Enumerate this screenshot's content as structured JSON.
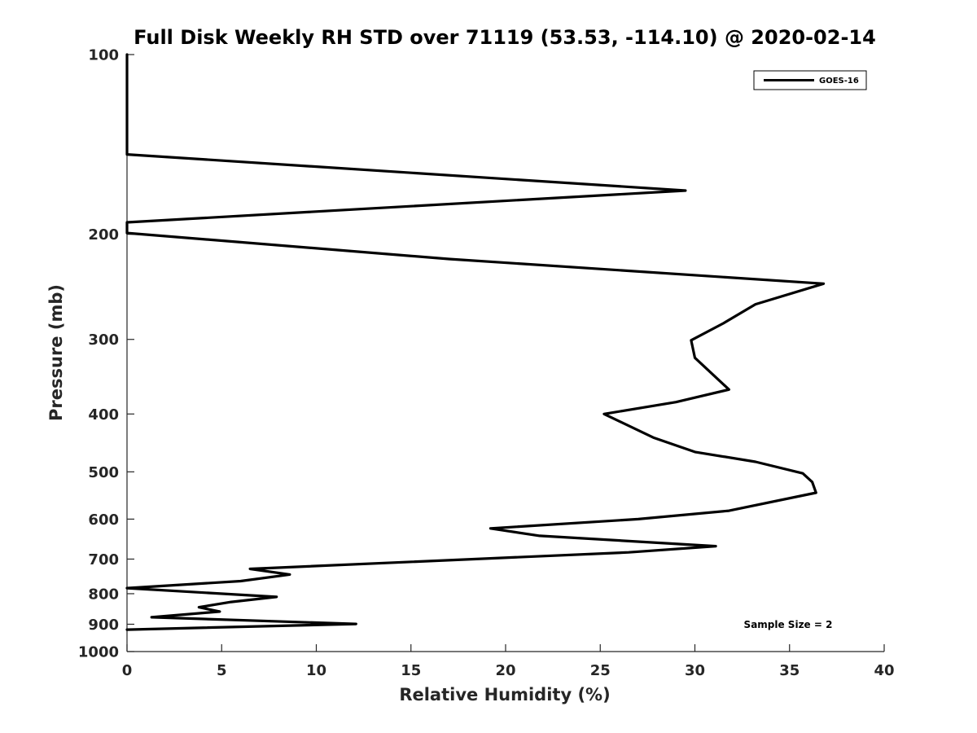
{
  "chart_data": {
    "type": "line",
    "title": "Full Disk Weekly RH STD over 71119 (53.53, -114.10) @ 2020-02-14",
    "xlabel": "Relative Humidity (%)",
    "ylabel": "Pressure (mb)",
    "xlim": [
      0,
      40
    ],
    "ylim": [
      1000,
      100
    ],
    "yscale": "log",
    "x_ticks": [
      0,
      5,
      10,
      15,
      20,
      25,
      30,
      35,
      40
    ],
    "y_ticks": [
      100,
      200,
      300,
      400,
      500,
      600,
      700,
      800,
      900,
      1000
    ],
    "grid": false,
    "legend": {
      "position": "top-right",
      "entries": [
        "GOES-16"
      ]
    },
    "annotations": [
      "Sample Size = 2"
    ],
    "series": [
      {
        "name": "GOES-16",
        "color": "#000000",
        "points": [
          {
            "rh": 0.0,
            "p": 100
          },
          {
            "rh": 0.0,
            "p": 147
          },
          {
            "rh": 29.5,
            "p": 169
          },
          {
            "rh": 0.0,
            "p": 191
          },
          {
            "rh": 0.0,
            "p": 199
          },
          {
            "rh": 17.0,
            "p": 220
          },
          {
            "rh": 36.8,
            "p": 242
          },
          {
            "rh": 33.2,
            "p": 262
          },
          {
            "rh": 31.5,
            "p": 282
          },
          {
            "rh": 29.8,
            "p": 301
          },
          {
            "rh": 30.0,
            "p": 322
          },
          {
            "rh": 31.8,
            "p": 364
          },
          {
            "rh": 29.0,
            "p": 382
          },
          {
            "rh": 25.2,
            "p": 400
          },
          {
            "rh": 27.8,
            "p": 438
          },
          {
            "rh": 30.0,
            "p": 463
          },
          {
            "rh": 33.2,
            "p": 481
          },
          {
            "rh": 35.7,
            "p": 503
          },
          {
            "rh": 36.2,
            "p": 520
          },
          {
            "rh": 36.4,
            "p": 542
          },
          {
            "rh": 31.8,
            "p": 581
          },
          {
            "rh": 27.0,
            "p": 600
          },
          {
            "rh": 19.2,
            "p": 622
          },
          {
            "rh": 21.8,
            "p": 640
          },
          {
            "rh": 31.1,
            "p": 666
          },
          {
            "rh": 26.5,
            "p": 682
          },
          {
            "rh": 6.5,
            "p": 727
          },
          {
            "rh": 8.6,
            "p": 743
          },
          {
            "rh": 6.0,
            "p": 762
          },
          {
            "rh": 0.0,
            "p": 783
          },
          {
            "rh": 7.9,
            "p": 810
          },
          {
            "rh": 5.5,
            "p": 826
          },
          {
            "rh": 3.8,
            "p": 843
          },
          {
            "rh": 4.9,
            "p": 857
          },
          {
            "rh": 1.3,
            "p": 876
          },
          {
            "rh": 12.1,
            "p": 899
          },
          {
            "rh": 0.0,
            "p": 919
          }
        ]
      }
    ]
  }
}
